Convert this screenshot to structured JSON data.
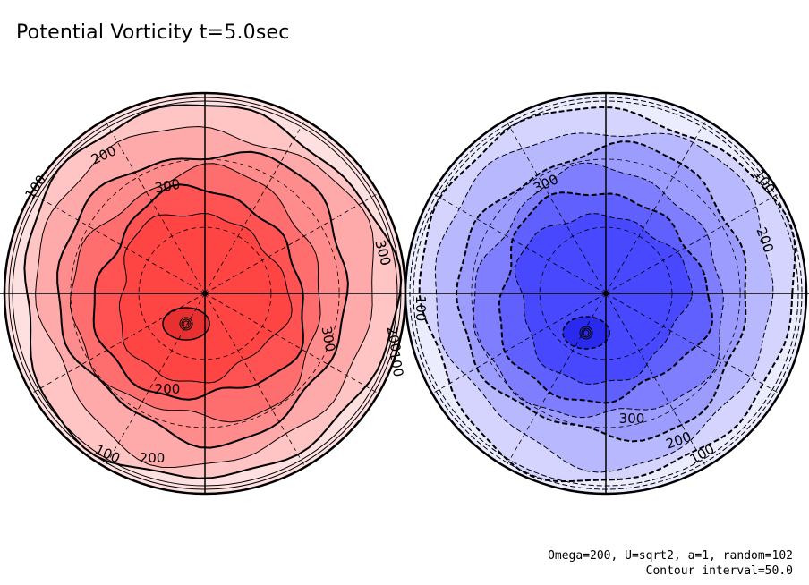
{
  "chart_data": {
    "type": "polar-contour",
    "title": "Potential Vorticity t=5.0sec",
    "panels": [
      {
        "name": "northern",
        "colormap": "red",
        "fill_colors": [
          "#ffe0e0",
          "#ffc4c4",
          "#ffaaaa",
          "#ff8c8c",
          "#ff6e6e",
          "#ff5252",
          "#ff4444"
        ],
        "contour_labels": [
          "100",
          "200",
          "300",
          "300",
          "300",
          "200",
          "100",
          "200",
          "300",
          "200",
          "100"
        ],
        "contour_style": "solid"
      },
      {
        "name": "southern",
        "colormap": "blue",
        "fill_colors": [
          "#ececff",
          "#d4d4ff",
          "#b8b8ff",
          "#9c9cff",
          "#7e7eff",
          "#6060ff",
          "#4848ff"
        ],
        "contour_labels": [
          "300",
          "100",
          "200",
          "100",
          "300",
          "200",
          "100"
        ],
        "contour_style": "dashed"
      }
    ],
    "contour_interval": 50.0
  },
  "title": "Potential Vorticity t=5.0sec",
  "footer": {
    "params": "Omega=200, U=sqrt2, a=1, random=102",
    "interval": "Contour interval=50.0"
  }
}
